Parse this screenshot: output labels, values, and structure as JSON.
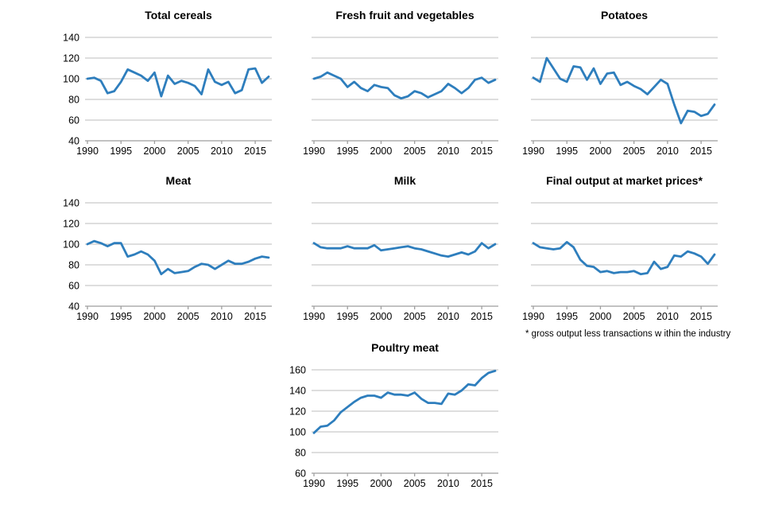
{
  "colors": {
    "line": "#2e7ebd",
    "grid": "#c9c9c9",
    "axis": "#9e9e9e",
    "text": "#000000"
  },
  "footnote": "* gross output less transactions w ithin the industry",
  "chart_data": [
    {
      "type": "line",
      "title": "Total cereals",
      "x": [
        1990,
        1991,
        1992,
        1993,
        1994,
        1995,
        1996,
        1997,
        1998,
        1999,
        2000,
        2001,
        2002,
        2003,
        2004,
        2005,
        2006,
        2007,
        2008,
        2009,
        2010,
        2011,
        2012,
        2013,
        2014,
        2015,
        2016,
        2017
      ],
      "values": [
        100,
        101,
        98,
        86,
        88,
        97,
        109,
        106,
        103,
        98,
        106,
        83,
        103,
        95,
        98,
        96,
        93,
        85,
        109,
        97,
        94,
        97,
        86,
        89,
        109,
        110,
        96,
        102
      ],
      "xticks": [
        1990,
        1995,
        2000,
        2005,
        2010,
        2015
      ],
      "ylim": [
        40,
        140
      ],
      "yticks": [
        140,
        120,
        100,
        80,
        60,
        40
      ],
      "show_y_labels": true,
      "grid": "horizontal",
      "legend": "none"
    },
    {
      "type": "line",
      "title": "Fresh fruit and vegetables",
      "x": [
        1990,
        1991,
        1992,
        1993,
        1994,
        1995,
        1996,
        1997,
        1998,
        1999,
        2000,
        2001,
        2002,
        2003,
        2004,
        2005,
        2006,
        2007,
        2008,
        2009,
        2010,
        2011,
        2012,
        2013,
        2014,
        2015,
        2016,
        2017
      ],
      "values": [
        100,
        102,
        106,
        103,
        100,
        92,
        97,
        91,
        88,
        94,
        92,
        91,
        84,
        81,
        83,
        88,
        86,
        82,
        85,
        88,
        95,
        91,
        86,
        91,
        99,
        101,
        96,
        99
      ],
      "xticks": [
        1990,
        1995,
        2000,
        2005,
        2010,
        2015
      ],
      "ylim": [
        40,
        140
      ],
      "yticks": [
        140,
        120,
        100,
        80,
        60,
        40
      ],
      "show_y_labels": false,
      "grid": "horizontal",
      "legend": "none"
    },
    {
      "type": "line",
      "title": "Potatoes",
      "x": [
        1990,
        1991,
        1992,
        1993,
        1994,
        1995,
        1996,
        1997,
        1998,
        1999,
        2000,
        2001,
        2002,
        2003,
        2004,
        2005,
        2006,
        2007,
        2008,
        2009,
        2010,
        2011,
        2012,
        2013,
        2014,
        2015,
        2016,
        2017
      ],
      "values": [
        101,
        97,
        120,
        110,
        100,
        97,
        112,
        111,
        99,
        110,
        95,
        105,
        106,
        94,
        97,
        93,
        90,
        85,
        92,
        99,
        95,
        75,
        57,
        69,
        68,
        64,
        66,
        75
      ],
      "xticks": [
        1990,
        1995,
        2000,
        2005,
        2010,
        2015
      ],
      "ylim": [
        40,
        140
      ],
      "yticks": [
        140,
        120,
        100,
        80,
        60,
        40
      ],
      "show_y_labels": false,
      "grid": "horizontal",
      "legend": "none"
    },
    {
      "type": "line",
      "title": "Meat",
      "x": [
        1990,
        1991,
        1992,
        1993,
        1994,
        1995,
        1996,
        1997,
        1998,
        1999,
        2000,
        2001,
        2002,
        2003,
        2004,
        2005,
        2006,
        2007,
        2008,
        2009,
        2010,
        2011,
        2012,
        2013,
        2014,
        2015,
        2016,
        2017
      ],
      "values": [
        100,
        103,
        101,
        98,
        101,
        101,
        88,
        90,
        93,
        90,
        84,
        71,
        76,
        72,
        73,
        74,
        78,
        81,
        80,
        76,
        80,
        84,
        81,
        81,
        83,
        86,
        88,
        87
      ],
      "xticks": [
        1990,
        1995,
        2000,
        2005,
        2010,
        2015
      ],
      "ylim": [
        40,
        140
      ],
      "yticks": [
        140,
        120,
        100,
        80,
        60,
        40
      ],
      "show_y_labels": true,
      "grid": "horizontal",
      "legend": "none"
    },
    {
      "type": "line",
      "title": "Milk",
      "x": [
        1990,
        1991,
        1992,
        1993,
        1994,
        1995,
        1996,
        1997,
        1998,
        1999,
        2000,
        2001,
        2002,
        2003,
        2004,
        2005,
        2006,
        2007,
        2008,
        2009,
        2010,
        2011,
        2012,
        2013,
        2014,
        2015,
        2016,
        2017
      ],
      "values": [
        101,
        97,
        96,
        96,
        96,
        98,
        96,
        96,
        96,
        99,
        94,
        95,
        96,
        97,
        98,
        96,
        95,
        93,
        91,
        89,
        88,
        90,
        92,
        90,
        93,
        101,
        96,
        100
      ],
      "xticks": [
        1990,
        1995,
        2000,
        2005,
        2010,
        2015
      ],
      "ylim": [
        40,
        140
      ],
      "yticks": [
        140,
        120,
        100,
        80,
        60,
        40
      ],
      "show_y_labels": false,
      "grid": "horizontal",
      "legend": "none"
    },
    {
      "type": "line",
      "title": "Final output at market prices*",
      "x": [
        1990,
        1991,
        1992,
        1993,
        1994,
        1995,
        1996,
        1997,
        1998,
        1999,
        2000,
        2001,
        2002,
        2003,
        2004,
        2005,
        2006,
        2007,
        2008,
        2009,
        2010,
        2011,
        2012,
        2013,
        2014,
        2015,
        2016,
        2017
      ],
      "values": [
        101,
        97,
        96,
        95,
        96,
        102,
        97,
        85,
        79,
        78,
        73,
        74,
        72,
        73,
        73,
        74,
        71,
        72,
        83,
        76,
        78,
        89,
        88,
        93,
        91,
        88,
        81,
        90
      ],
      "xticks": [
        1990,
        1995,
        2000,
        2005,
        2010,
        2015
      ],
      "ylim": [
        40,
        140
      ],
      "yticks": [
        140,
        120,
        100,
        80,
        60,
        40
      ],
      "show_y_labels": false,
      "grid": "horizontal",
      "legend": "none"
    },
    {
      "type": "line",
      "title": "Poultry meat",
      "x": [
        1990,
        1991,
        1992,
        1993,
        1994,
        1995,
        1996,
        1997,
        1998,
        1999,
        2000,
        2001,
        2002,
        2003,
        2004,
        2005,
        2006,
        2007,
        2008,
        2009,
        2010,
        2011,
        2012,
        2013,
        2014,
        2015,
        2016,
        2017
      ],
      "values": [
        99,
        105,
        106,
        111,
        119,
        124,
        129,
        133,
        135,
        135,
        133,
        138,
        136,
        136,
        135,
        138,
        132,
        128,
        128,
        127,
        137,
        136,
        140,
        146,
        145,
        152,
        157,
        159
      ],
      "xticks": [
        1990,
        1995,
        2000,
        2005,
        2010,
        2015
      ],
      "ylim": [
        60,
        160
      ],
      "yticks": [
        160,
        140,
        120,
        100,
        80,
        60
      ],
      "show_y_labels": true,
      "grid": "horizontal",
      "legend": "none"
    }
  ]
}
